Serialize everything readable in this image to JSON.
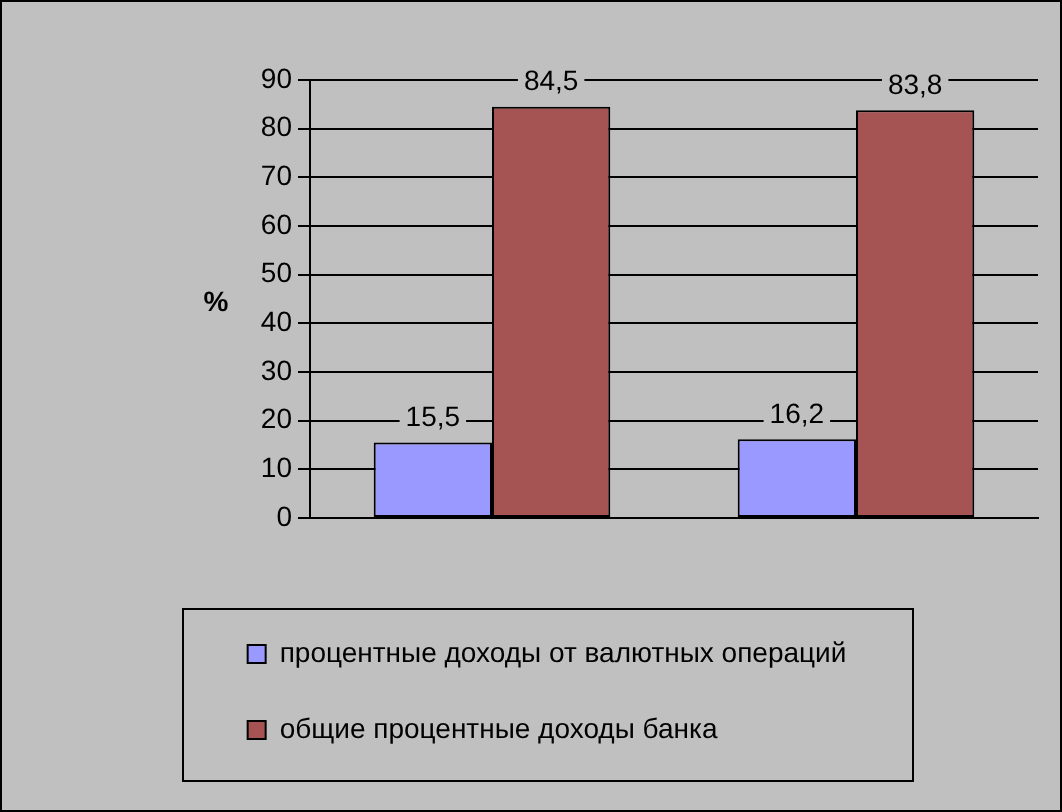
{
  "chart_data": {
    "type": "bar",
    "categories": [
      null,
      null
    ],
    "series": [
      {
        "name": "процентные доходы от валютных операций",
        "color": "#9999ff",
        "values": [
          15.5,
          16.2
        ],
        "value_labels": [
          "15,5",
          "16,2"
        ]
      },
      {
        "name": "общие процентные доходы банка",
        "color": "#a65353",
        "values": [
          84.5,
          83.8
        ],
        "value_labels": [
          "84,5",
          "83,8"
        ]
      }
    ],
    "ylabel": "%",
    "ylim": [
      0,
      90
    ],
    "yticks": [
      0,
      10,
      20,
      30,
      40,
      50,
      60,
      70,
      80,
      90
    ],
    "grid": "y",
    "legend": "bottom"
  }
}
